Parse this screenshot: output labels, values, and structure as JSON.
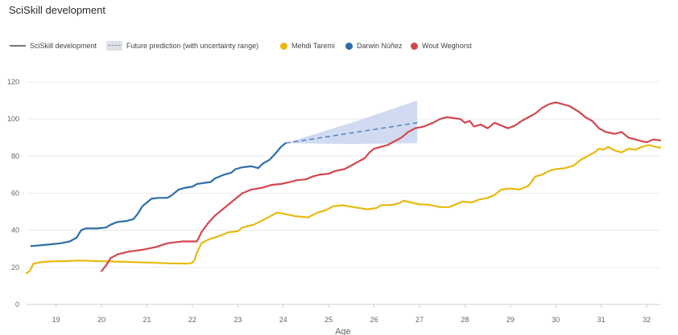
{
  "chart_data": {
    "type": "line",
    "title": "SciSkill development",
    "xlabel": "Age",
    "ylabel": "",
    "xlim": [
      18.35,
      32.3
    ],
    "ylim": [
      0,
      120
    ],
    "xticks": [
      19,
      20,
      21,
      22,
      23,
      24,
      25,
      26,
      27,
      28,
      29,
      30,
      31,
      32
    ],
    "yticks": [
      0,
      20,
      40,
      60,
      80,
      100,
      120
    ],
    "grid": "horizontal",
    "legend_position": "top-left",
    "legend": {
      "development": "SciSkill development",
      "prediction": "Future prediction (with uncertainty range)"
    },
    "series": [
      {
        "name": "Mehdi Taremi",
        "color": "#e8b90f",
        "points": [
          [
            18.35,
            17
          ],
          [
            18.42,
            18
          ],
          [
            18.5,
            22
          ],
          [
            18.65,
            22.8
          ],
          [
            18.9,
            23.2
          ],
          [
            19.2,
            23.4
          ],
          [
            19.5,
            23.7
          ],
          [
            19.8,
            23.5
          ],
          [
            20.1,
            23.2
          ],
          [
            20.5,
            23
          ],
          [
            21,
            22.6
          ],
          [
            21.5,
            22.2
          ],
          [
            21.9,
            22
          ],
          [
            22.0,
            22.5
          ],
          [
            22.05,
            24
          ],
          [
            22.1,
            28
          ],
          [
            22.2,
            33
          ],
          [
            22.35,
            35
          ],
          [
            22.6,
            37
          ],
          [
            22.8,
            39
          ],
          [
            23.0,
            39.5
          ],
          [
            23.1,
            41.5
          ],
          [
            23.35,
            43
          ],
          [
            23.55,
            45.5
          ],
          [
            23.75,
            48
          ],
          [
            23.85,
            49.5
          ],
          [
            24.0,
            49
          ],
          [
            24.3,
            47.5
          ],
          [
            24.55,
            47
          ],
          [
            24.75,
            49.5
          ],
          [
            24.95,
            51
          ],
          [
            25.1,
            53
          ],
          [
            25.3,
            53.5
          ],
          [
            25.55,
            52.5
          ],
          [
            25.85,
            51.3
          ],
          [
            26.05,
            52
          ],
          [
            26.15,
            53.5
          ],
          [
            26.4,
            53.7
          ],
          [
            26.55,
            54.5
          ],
          [
            26.65,
            56
          ],
          [
            26.8,
            55
          ],
          [
            27.0,
            54
          ],
          [
            27.2,
            53.8
          ],
          [
            27.45,
            52.5
          ],
          [
            27.65,
            52.5
          ],
          [
            27.8,
            54
          ],
          [
            27.95,
            55.5
          ],
          [
            28.15,
            55
          ],
          [
            28.3,
            56.5
          ],
          [
            28.5,
            57.5
          ],
          [
            28.65,
            59
          ],
          [
            28.8,
            62
          ],
          [
            29.0,
            62.5
          ],
          [
            29.2,
            62
          ],
          [
            29.4,
            64
          ],
          [
            29.55,
            69
          ],
          [
            29.7,
            70
          ],
          [
            29.85,
            72
          ],
          [
            30.0,
            73
          ],
          [
            30.2,
            73.5
          ],
          [
            30.4,
            75
          ],
          [
            30.55,
            78
          ],
          [
            30.7,
            80
          ],
          [
            30.85,
            82
          ],
          [
            30.95,
            84
          ],
          [
            31.05,
            83.5
          ],
          [
            31.15,
            85
          ],
          [
            31.3,
            83
          ],
          [
            31.45,
            82
          ],
          [
            31.6,
            84
          ],
          [
            31.75,
            83.5
          ],
          [
            31.9,
            85
          ],
          [
            32.05,
            86
          ],
          [
            32.2,
            85
          ],
          [
            32.3,
            84.5
          ]
        ]
      },
      {
        "name": "Darwin Núñez",
        "color": "#2d6ea8",
        "points": [
          [
            18.45,
            31.5
          ],
          [
            18.7,
            32
          ],
          [
            18.9,
            32.5
          ],
          [
            19.1,
            33
          ],
          [
            19.3,
            34
          ],
          [
            19.45,
            36
          ],
          [
            19.55,
            40
          ],
          [
            19.65,
            41
          ],
          [
            19.9,
            41
          ],
          [
            20.1,
            41.5
          ],
          [
            20.2,
            43
          ],
          [
            20.35,
            44.5
          ],
          [
            20.55,
            45
          ],
          [
            20.7,
            46
          ],
          [
            20.8,
            49
          ],
          [
            20.9,
            53
          ],
          [
            21.0,
            55
          ],
          [
            21.1,
            57
          ],
          [
            21.25,
            57.5
          ],
          [
            21.45,
            57.5
          ],
          [
            21.55,
            59
          ],
          [
            21.7,
            62
          ],
          [
            21.85,
            63
          ],
          [
            22.0,
            63.5
          ],
          [
            22.1,
            65
          ],
          [
            22.25,
            65.5
          ],
          [
            22.4,
            66
          ],
          [
            22.5,
            68
          ],
          [
            22.7,
            70
          ],
          [
            22.85,
            71
          ],
          [
            22.95,
            73
          ],
          [
            23.1,
            74
          ],
          [
            23.3,
            74.5
          ],
          [
            23.45,
            73.5
          ],
          [
            23.55,
            76
          ],
          [
            23.7,
            78
          ],
          [
            23.85,
            82
          ],
          [
            23.95,
            85
          ],
          [
            24.05,
            87
          ]
        ]
      },
      {
        "name": "Wout Weghorst",
        "color": "#d2464e",
        "points": [
          [
            20.0,
            18
          ],
          [
            20.1,
            21
          ],
          [
            20.2,
            25
          ],
          [
            20.35,
            27
          ],
          [
            20.6,
            28.5
          ],
          [
            20.9,
            29.5
          ],
          [
            21.2,
            31
          ],
          [
            21.45,
            33
          ],
          [
            21.6,
            33.5
          ],
          [
            21.8,
            34
          ],
          [
            22.1,
            34
          ],
          [
            22.2,
            39
          ],
          [
            22.35,
            44
          ],
          [
            22.5,
            48
          ],
          [
            22.65,
            51
          ],
          [
            22.8,
            54
          ],
          [
            22.95,
            57
          ],
          [
            23.1,
            60
          ],
          [
            23.3,
            62
          ],
          [
            23.55,
            63
          ],
          [
            23.75,
            64.5
          ],
          [
            23.95,
            65
          ],
          [
            24.15,
            66
          ],
          [
            24.3,
            67
          ],
          [
            24.5,
            67.5
          ],
          [
            24.65,
            69
          ],
          [
            24.8,
            70
          ],
          [
            25.0,
            70.5
          ],
          [
            25.15,
            72
          ],
          [
            25.35,
            73
          ],
          [
            25.5,
            75
          ],
          [
            25.65,
            77
          ],
          [
            25.8,
            79
          ],
          [
            25.9,
            82
          ],
          [
            26.0,
            84
          ],
          [
            26.15,
            85
          ],
          [
            26.3,
            86
          ],
          [
            26.45,
            88
          ],
          [
            26.6,
            90
          ],
          [
            26.75,
            93
          ],
          [
            26.9,
            95
          ],
          [
            27.1,
            96
          ],
          [
            27.3,
            98
          ],
          [
            27.45,
            100
          ],
          [
            27.6,
            101
          ],
          [
            27.75,
            100.5
          ],
          [
            27.9,
            100
          ],
          [
            28.0,
            98
          ],
          [
            28.1,
            99
          ],
          [
            28.2,
            96
          ],
          [
            28.35,
            97
          ],
          [
            28.5,
            95
          ],
          [
            28.65,
            98
          ],
          [
            28.8,
            96.5
          ],
          [
            28.95,
            95
          ],
          [
            29.1,
            96.5
          ],
          [
            29.25,
            99
          ],
          [
            29.4,
            101
          ],
          [
            29.55,
            103
          ],
          [
            29.7,
            106
          ],
          [
            29.85,
            108
          ],
          [
            30.0,
            109
          ],
          [
            30.15,
            108
          ],
          [
            30.3,
            107
          ],
          [
            30.5,
            104
          ],
          [
            30.65,
            101
          ],
          [
            30.8,
            99
          ],
          [
            30.95,
            95
          ],
          [
            31.1,
            93
          ],
          [
            31.3,
            92
          ],
          [
            31.45,
            93
          ],
          [
            31.6,
            90
          ],
          [
            31.75,
            89
          ],
          [
            31.9,
            88
          ],
          [
            32.0,
            87.5
          ],
          [
            32.15,
            89
          ],
          [
            32.3,
            88.5
          ]
        ]
      }
    ],
    "prediction": {
      "color": "#5b7fc4",
      "x": [
        24.05,
        25.5,
        26.95
      ],
      "mean": [
        87,
        92.5,
        98
      ],
      "upper": [
        87,
        98,
        110
      ],
      "lower": [
        87,
        86.5,
        87
      ]
    }
  }
}
